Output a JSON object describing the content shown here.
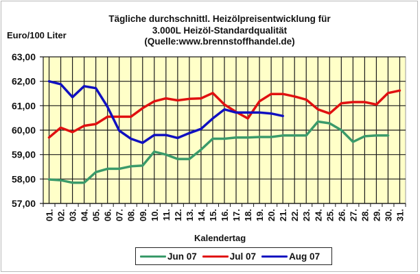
{
  "chart_data": {
    "type": "line",
    "title": "Tägliche durchschnittl. Heizölpreisentwicklung für 3.000L Heizöl-Standardqualität (Quelle:www.brennstoffhandel.de)",
    "title_lines": [
      "Tägliche durchschnittl. Heizölpreisentwicklung für",
      "3.000L Heizöl-Standardqualität",
      "(Quelle:www.brennstoffhandel.de)"
    ],
    "xlabel": "Kalendertag",
    "ylabel": "Euro/100 Liter",
    "ylim": [
      57,
      63
    ],
    "yticks": [
      "57,00",
      "58,00",
      "59,00",
      "60,00",
      "61,00",
      "62,00",
      "63,00"
    ],
    "categories": [
      "01.",
      "02.",
      "03.",
      "04.",
      "05.",
      "06.",
      "07.",
      "08.",
      "09.",
      "10.",
      "11.",
      "12.",
      "13.",
      "14.",
      "15.",
      "16.",
      "17.",
      "18.",
      "19.",
      "20.",
      "21.",
      "22.",
      "23.",
      "24.",
      "25.",
      "26.",
      "27.",
      "28.",
      "29.",
      "30.",
      "31."
    ],
    "grid": true,
    "plot_background": "#ffffc8",
    "legend_position": "bottom",
    "series": [
      {
        "name": "Jun 07",
        "color": "#3a9a6a",
        "values": [
          57.98,
          57.95,
          57.85,
          57.85,
          58.28,
          58.42,
          58.42,
          58.52,
          58.55,
          59.12,
          59.0,
          58.82,
          58.82,
          59.2,
          59.65,
          59.65,
          59.7,
          59.7,
          59.72,
          59.72,
          59.78,
          59.78,
          59.78,
          60.35,
          60.28,
          60.0,
          59.52,
          59.75,
          59.78,
          59.78
        ]
      },
      {
        "name": "Jul 07",
        "color": "#e01010",
        "values": [
          59.7,
          60.1,
          59.92,
          60.18,
          60.25,
          60.55,
          60.55,
          60.55,
          60.9,
          61.18,
          61.3,
          61.22,
          61.28,
          61.3,
          61.52,
          61.05,
          60.75,
          60.48,
          61.18,
          61.48,
          61.48,
          61.38,
          61.25,
          60.85,
          60.68,
          61.1,
          61.15,
          61.15,
          61.05,
          61.52,
          61.62
        ]
      },
      {
        "name": "Aug 07",
        "color": "#1010c0",
        "values": [
          62.0,
          61.88,
          61.35,
          61.8,
          61.72,
          60.95,
          59.98,
          59.65,
          59.48,
          59.8,
          59.8,
          59.68,
          59.88,
          60.05,
          60.48,
          60.85,
          60.72,
          60.72,
          60.72,
          60.68,
          60.58
        ]
      }
    ]
  }
}
